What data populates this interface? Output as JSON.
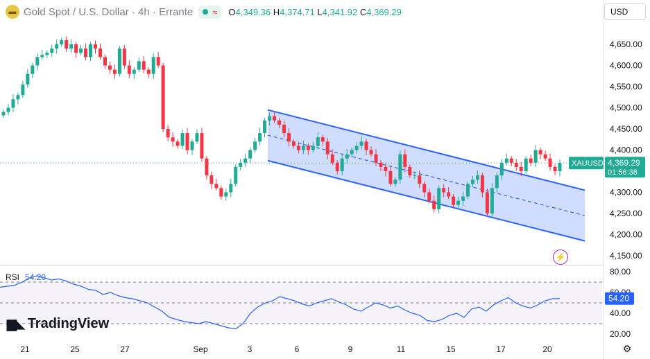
{
  "header": {
    "symbol_title": "Gold Spot / U.S. Dollar · 4h · Errante",
    "ohlc": {
      "o_label": "O",
      "o": "4,349.36",
      "h_label": "H",
      "h": "4,374.71",
      "l_label": "L",
      "l": "4,341.92",
      "c_label": "C",
      "c": "4,369.29"
    },
    "currency": "USD"
  },
  "price_label": {
    "ticker": "XAUUSD",
    "price": "4,369.29",
    "countdown": "01:56:38"
  },
  "rsi": {
    "label": "RSI",
    "value": "54.20"
  },
  "brand": {
    "name": "TradingView"
  },
  "colors": {
    "up": "#22ab94",
    "down": "#f23645",
    "channel": "#2962ff",
    "rsi_line": "#2962ff",
    "flash": "#9c27b0"
  },
  "chart_data": {
    "type": "candlestick",
    "timeframe": "4h",
    "price_axis": {
      "ticks": [
        "4,650.00",
        "4,600.00",
        "4,550.00",
        "4,500.00",
        "4,450.00",
        "4,400.00",
        "4,350.00",
        "4,300.00",
        "4,250.00",
        "4,200.00",
        "4,150.00"
      ],
      "range": [
        4140,
        4700
      ]
    },
    "rsi_axis": {
      "ticks": [
        "80.00",
        "60.00",
        "40.00",
        "20.00"
      ],
      "range": [
        20,
        80
      ],
      "bands": [
        70,
        50,
        30
      ]
    },
    "x_ticks": [
      "21",
      "25",
      "27",
      "Sep",
      "3",
      "6",
      "9",
      "11",
      "15",
      "17",
      "20"
    ],
    "closes": [
      4490,
      4500,
      4520,
      4530,
      4555,
      4580,
      4600,
      4620,
      4625,
      4630,
      4640,
      4650,
      4660,
      4640,
      4650,
      4630,
      4640,
      4620,
      4650,
      4640,
      4620,
      4600,
      4590,
      4580,
      4640,
      4600,
      4580,
      4590,
      4610,
      4590,
      4580,
      4620,
      4600,
      4450,
      4430,
      4420,
      4410,
      4440,
      4400,
      4420,
      4440,
      4380,
      4340,
      4320,
      4310,
      4290,
      4300,
      4320,
      4360,
      4370,
      4380,
      4400,
      4420,
      4440,
      4470,
      4480,
      4470,
      4460,
      4440,
      4420,
      4410,
      4400,
      4410,
      4400,
      4410,
      4430,
      4420,
      4390,
      4370,
      4350,
      4380,
      4390,
      4400,
      4410,
      4420,
      4400,
      4390,
      4370,
      4360,
      4350,
      4320,
      4330,
      4390,
      4360,
      4340,
      4340,
      4320,
      4300,
      4280,
      4260,
      4310,
      4300,
      4290,
      4270,
      4280,
      4290,
      4320,
      4330,
      4340,
      4300,
      4250,
      4310,
      4340,
      4370,
      4380,
      4370,
      4360,
      4350,
      4380,
      4370,
      4400,
      4390,
      4380,
      4360,
      4350,
      4369.29
    ],
    "rsi_values": [
      65,
      66,
      67,
      70,
      74,
      76,
      74,
      72,
      73,
      71,
      68,
      66,
      63,
      62,
      58,
      60,
      57,
      55,
      54,
      52,
      50,
      46,
      42,
      36,
      34,
      32,
      31,
      30,
      32,
      30,
      28,
      26,
      25,
      30,
      40,
      46,
      50,
      52,
      56,
      54,
      52,
      49,
      47,
      50,
      52,
      54,
      51,
      48,
      44,
      42,
      46,
      50,
      48,
      45,
      47,
      43,
      40,
      38,
      33,
      32,
      34,
      38,
      40,
      36,
      44,
      46,
      42,
      48,
      52,
      55,
      50,
      47,
      45,
      48,
      52,
      54,
      54.2
    ],
    "channel": {
      "upper": [
        [
          4495,
          "2025-09-03"
        ],
        [
          4305,
          "2025-09-21"
        ]
      ],
      "lower": [
        [
          4375,
          "2025-09-03"
        ],
        [
          4185,
          "2025-09-21"
        ]
      ]
    },
    "current_price": 4369.29
  }
}
